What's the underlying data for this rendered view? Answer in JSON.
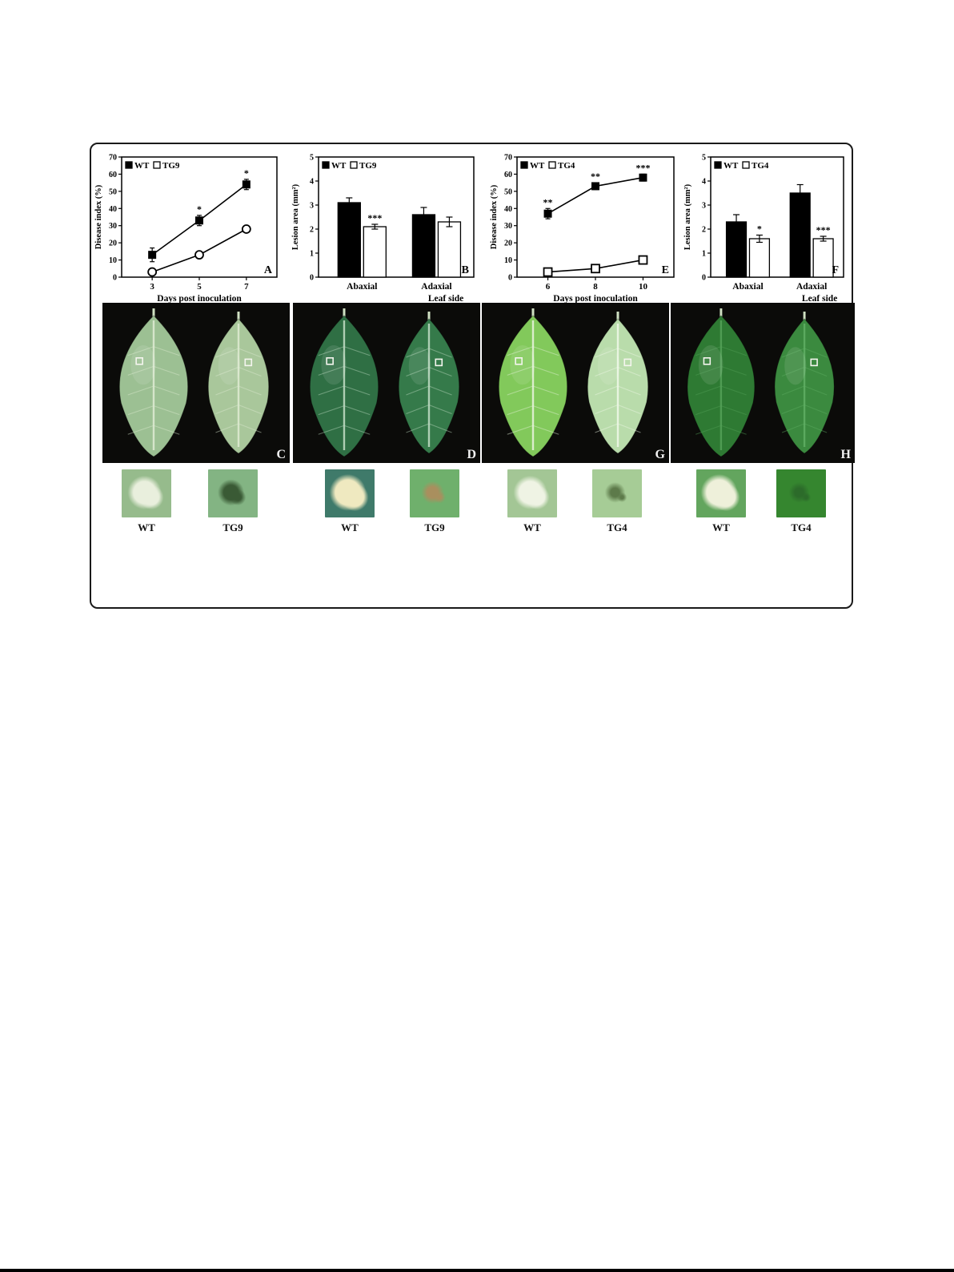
{
  "page": {
    "background": "#ffffff",
    "bottom_rule_color": "#000000"
  },
  "chart_data": [
    {
      "panel": "A",
      "type": "line",
      "title": "",
      "ylabel": "Disease index (%)",
      "xlabel": "Days post inoculation",
      "ylim": [
        0,
        70
      ],
      "yticks": [
        0,
        10,
        20,
        30,
        40,
        50,
        60,
        70
      ],
      "x": [
        3,
        5,
        7
      ],
      "legend_position": "top-left",
      "series": [
        {
          "name": "WT",
          "marker": "filled-square",
          "color": "#000000",
          "values": [
            13,
            33,
            54
          ],
          "errors": [
            4,
            3,
            3
          ],
          "annotations": [
            "",
            "*",
            "*"
          ]
        },
        {
          "name": "TG9",
          "marker": "open-circle",
          "color": "#000000",
          "values": [
            3,
            13,
            28
          ],
          "errors": [
            1,
            2,
            2
          ],
          "annotations": [
            "",
            "",
            ""
          ]
        }
      ]
    },
    {
      "panel": "B",
      "type": "bar",
      "title": "",
      "ylabel": "Lesion area (mm²)",
      "xlabel": "Leaf side",
      "ylim": [
        0,
        5
      ],
      "yticks": [
        0,
        1,
        2,
        3,
        4,
        5
      ],
      "categories": [
        "Abaxial",
        "Adaxial"
      ],
      "legend_position": "top-left",
      "series": [
        {
          "name": "WT",
          "fill": "#000000",
          "values": [
            3.1,
            2.6
          ],
          "errors": [
            0.2,
            0.3
          ],
          "annotations": [
            "",
            ""
          ]
        },
        {
          "name": "TG9",
          "fill": "#ffffff",
          "values": [
            2.1,
            2.3
          ],
          "errors": [
            0.1,
            0.2
          ],
          "annotations": [
            "***",
            ""
          ]
        }
      ]
    },
    {
      "panel": "E",
      "type": "line",
      "title": "",
      "ylabel": "Disease index (%)",
      "xlabel": "Days post inoculation",
      "ylim": [
        0,
        70
      ],
      "yticks": [
        0,
        10,
        20,
        30,
        40,
        50,
        60,
        70
      ],
      "x": [
        6,
        8,
        10
      ],
      "legend_position": "top-left",
      "series": [
        {
          "name": "WT",
          "marker": "filled-square",
          "color": "#000000",
          "values": [
            37,
            53,
            58
          ],
          "errors": [
            3,
            2,
            2
          ],
          "annotations": [
            "**",
            "**",
            "***"
          ]
        },
        {
          "name": "TG4",
          "marker": "open-square",
          "color": "#000000",
          "values": [
            3,
            5,
            10
          ],
          "errors": [
            1,
            1,
            1
          ],
          "annotations": [
            "",
            "",
            ""
          ]
        }
      ]
    },
    {
      "panel": "F",
      "type": "bar",
      "title": "",
      "ylabel": "Lesion area (mm²)",
      "xlabel": "Leaf side",
      "ylim": [
        0,
        5
      ],
      "yticks": [
        0,
        1,
        2,
        3,
        4,
        5
      ],
      "categories": [
        "Abaxial",
        "Adaxial"
      ],
      "legend_position": "top-left",
      "series": [
        {
          "name": "WT",
          "fill": "#000000",
          "values": [
            2.3,
            3.5
          ],
          "errors": [
            0.3,
            0.35
          ],
          "annotations": [
            "",
            ""
          ]
        },
        {
          "name": "TG4",
          "fill": "#ffffff",
          "values": [
            1.6,
            1.6
          ],
          "errors": [
            0.15,
            0.1
          ],
          "annotations": [
            "*",
            "***"
          ]
        }
      ]
    }
  ],
  "figure": {
    "photo_panels": [
      {
        "letter": "C",
        "background": "#0b0b09",
        "leaves": [
          {
            "fill": "#9cc093",
            "rib": "#dcead0",
            "marker": true
          },
          {
            "fill": "#a9c79b",
            "rib": "#dcead0",
            "marker": true
          }
        ]
      },
      {
        "letter": "D",
        "background": "#0b0b09",
        "leaves": [
          {
            "fill": "#2f6f44",
            "rib": "#bcd9c0",
            "marker": true
          },
          {
            "fill": "#357a4a",
            "rib": "#bcd9c0",
            "marker": true
          }
        ]
      },
      {
        "letter": "G",
        "background": "#0b0b09",
        "leaves": [
          {
            "fill": "#82c95b",
            "rib": "#e4f2d8",
            "marker": true
          },
          {
            "fill": "#b9dcab",
            "rib": "#eef7e6",
            "marker": true
          }
        ]
      },
      {
        "letter": "H",
        "background": "#0b0b09",
        "leaves": [
          {
            "fill": "#2e7a33",
            "rib": "#53a057",
            "marker": true
          },
          {
            "fill": "#3b8a3f",
            "rib": "#5fae63",
            "marker": true
          }
        ]
      }
    ],
    "closeups": [
      {
        "label": "WT",
        "background": "#96bb8c",
        "lesion": "#e9efdd",
        "lesion_size": 30
      },
      {
        "label": "TG9",
        "background": "#83b483",
        "lesion": "#3a5a35",
        "lesion_size": 20
      },
      {
        "label": "WT",
        "background": "#3f7a6a",
        "lesion": "#efe9c0",
        "lesion_size": 34
      },
      {
        "label": "TG9",
        "background": "#6fb06c",
        "lesion": "#a98f5e",
        "lesion_size": 15
      },
      {
        "label": "WT",
        "background": "#a3c695",
        "lesion": "#eff3e4",
        "lesion_size": 30
      },
      {
        "label": "TG4",
        "background": "#a6cc96",
        "lesion": "#5d7a4a",
        "lesion_size": 12
      },
      {
        "label": "WT",
        "background": "#63a55e",
        "lesion": "#eef0da",
        "lesion_size": 34
      },
      {
        "label": "TG4",
        "background": "#35862f",
        "lesion": "#2c6b2a",
        "lesion_size": 12
      }
    ]
  }
}
